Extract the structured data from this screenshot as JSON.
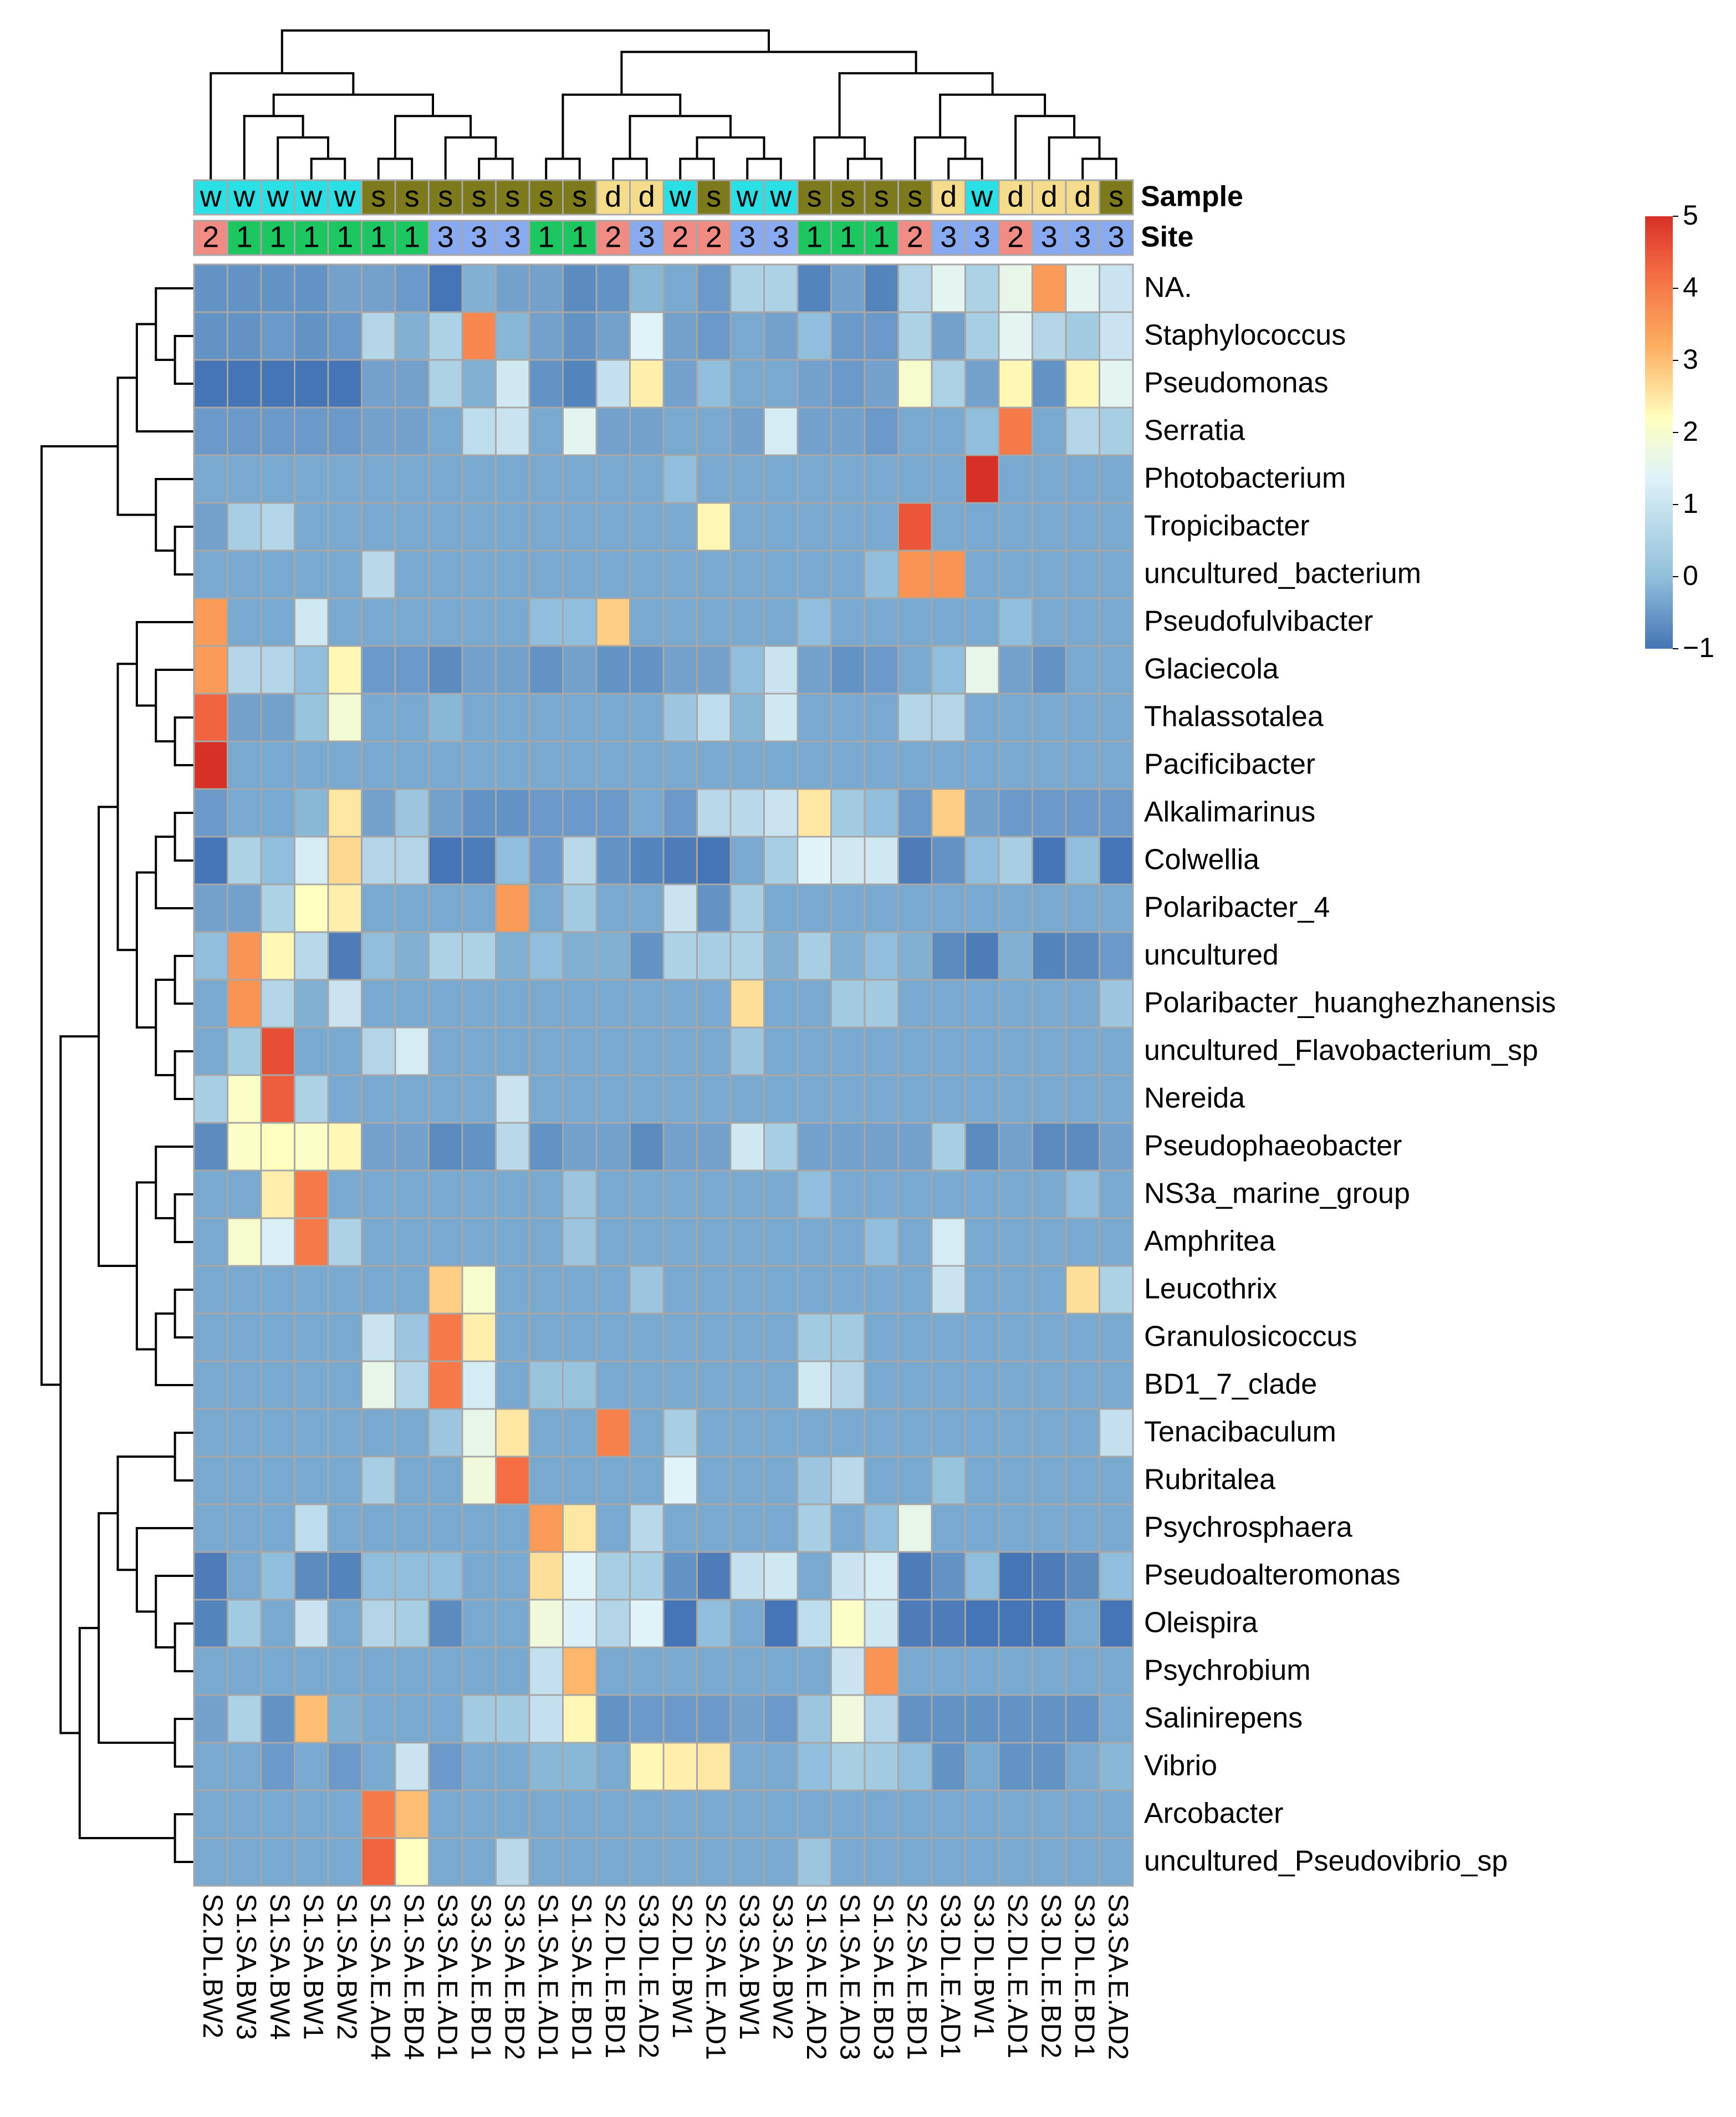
{
  "chart_data": {
    "type": "heatmap",
    "title": "",
    "columns": [
      "S2.DL.BW2",
      "S1.SA.BW3",
      "S1.SA.BW4",
      "S1.SA.BW1",
      "S1.SA.BW2",
      "S1.SA.E.AD4",
      "S1.SA.E.BD4",
      "S3.SA.E.AD1",
      "S3.SA.E.BD1",
      "S3.SA.E.BD2",
      "S1.SA.E.AD1",
      "S1.SA.E.BD1",
      "S2.DL.E.BD1",
      "S3.DL.E.AD2",
      "S2.DL.BW1",
      "S2.SA.E.AD1",
      "S3.SA.BW1",
      "S3.SA.BW2",
      "S1.SA.E.AD2",
      "S1.SA.E.AD3",
      "S1.SA.E.BD3",
      "S2.SA.E.BD1",
      "S3.DL.E.AD1",
      "S3.DL.BW1",
      "S2.DL.E.AD1",
      "S3.DL.E.BD2",
      "S3.DL.E.BD1",
      "S3.SA.E.AD2"
    ],
    "rows": [
      "NA.",
      "Staphylococcus",
      "Pseudomonas",
      "Serratia",
      "Photobacterium",
      "Tropicibacter",
      "uncultured_bacterium",
      "Pseudofulvibacter",
      "Glaciecola",
      "Thalassotalea",
      "Pacificibacter",
      "Alkalimarinus",
      "Colwellia",
      "Polaribacter_4",
      "uncultured",
      "Polaribacter_huanghezhanensis",
      "uncultured_Flavobacterium_sp",
      "Nereida",
      "Pseudophaeobacter",
      "NS3a_marine_group",
      "Amphritea",
      "Leucothrix",
      "Granulosicoccus",
      "BD1_7_clade",
      "Tenacibaculum",
      "Rubritalea",
      "Psychrosphaera",
      "Pseudoalteromonas",
      "Oleispira",
      "Psychrobium",
      "Salinirepens",
      "Vibrio",
      "Arcobacter",
      "uncultured_Pseudovibrio_sp"
    ],
    "annotations": {
      "sample": {
        "label": "Sample",
        "values": [
          "w",
          "w",
          "w",
          "w",
          "w",
          "s",
          "s",
          "s",
          "s",
          "s",
          "s",
          "s",
          "d",
          "d",
          "w",
          "s",
          "w",
          "w",
          "s",
          "s",
          "s",
          "s",
          "d",
          "w",
          "d",
          "d",
          "d",
          "s"
        ],
        "colors": {
          "w": "#2ae0e4",
          "s": "#7c7a1c",
          "d": "#f4dc8c"
        }
      },
      "site": {
        "label": "Site",
        "values": [
          "2",
          "1",
          "1",
          "1",
          "1",
          "1",
          "1",
          "3",
          "3",
          "3",
          "1",
          "1",
          "2",
          "3",
          "2",
          "2",
          "3",
          "3",
          "1",
          "1",
          "1",
          "2",
          "3",
          "3",
          "2",
          "3",
          "3",
          "3"
        ],
        "colors": {
          "1": "#1dc65e",
          "2": "#f08c84",
          "3": "#88aaee"
        }
      }
    },
    "values": [
      [
        -0.6,
        -0.6,
        -0.6,
        -0.6,
        -0.4,
        -0.4,
        -0.5,
        -1.0,
        -0.2,
        -0.4,
        -0.4,
        -0.7,
        -0.6,
        -0.1,
        -0.3,
        -0.5,
        0.5,
        0.5,
        -0.8,
        -0.4,
        -0.8,
        0.6,
        1.5,
        0.5,
        1.6,
        3.5,
        1.5,
        1.0
      ],
      [
        -0.6,
        -0.6,
        -0.5,
        -0.6,
        -0.5,
        0.6,
        -0.2,
        0.5,
        3.8,
        -0.1,
        -0.4,
        -0.6,
        -0.4,
        1.4,
        -0.4,
        -0.5,
        -0.3,
        -0.4,
        0.0,
        -0.5,
        -0.5,
        0.5,
        -0.4,
        0.4,
        1.5,
        0.6,
        0.3,
        1.0
      ],
      [
        -1.0,
        -1.0,
        -1.0,
        -1.1,
        -1.1,
        -0.4,
        -0.4,
        0.5,
        -0.2,
        1.1,
        -0.6,
        -0.8,
        0.9,
        2.4,
        -0.4,
        0.0,
        -0.3,
        -0.3,
        -0.4,
        -0.5,
        -0.4,
        2.0,
        0.5,
        -0.4,
        2.3,
        -0.6,
        2.3,
        1.5
      ],
      [
        -0.5,
        -0.5,
        -0.5,
        -0.5,
        -0.5,
        -0.4,
        -0.4,
        -0.3,
        0.8,
        1.0,
        -0.3,
        1.5,
        -0.4,
        -0.4,
        -0.3,
        -0.3,
        -0.4,
        1.2,
        -0.4,
        -0.4,
        -0.5,
        -0.3,
        -0.3,
        0.0,
        4.0,
        -0.3,
        0.6,
        0.4
      ],
      [
        -0.3,
        -0.3,
        -0.3,
        -0.3,
        -0.3,
        -0.3,
        -0.3,
        -0.3,
        -0.3,
        -0.3,
        -0.3,
        -0.3,
        -0.3,
        -0.3,
        0.0,
        -0.3,
        -0.3,
        -0.3,
        -0.3,
        -0.3,
        -0.3,
        -0.3,
        -0.3,
        5.0,
        -0.3,
        -0.3,
        -0.3,
        -0.3
      ],
      [
        -0.4,
        0.4,
        0.6,
        -0.3,
        -0.3,
        -0.3,
        -0.3,
        -0.3,
        -0.3,
        -0.3,
        -0.3,
        -0.3,
        -0.3,
        -0.3,
        -0.3,
        2.3,
        -0.3,
        -0.3,
        -0.3,
        -0.3,
        -0.3,
        4.5,
        -0.3,
        -0.3,
        -0.3,
        -0.3,
        -0.3,
        -0.3
      ],
      [
        -0.3,
        -0.3,
        -0.3,
        -0.3,
        -0.3,
        0.7,
        -0.3,
        -0.3,
        -0.3,
        -0.3,
        -0.3,
        -0.3,
        -0.3,
        -0.3,
        -0.3,
        -0.3,
        -0.3,
        -0.3,
        -0.3,
        -0.3,
        0.0,
        3.6,
        3.6,
        -0.3,
        -0.3,
        -0.3,
        -0.3,
        -0.3
      ],
      [
        3.5,
        -0.3,
        -0.3,
        1.1,
        -0.3,
        -0.3,
        -0.3,
        -0.3,
        -0.3,
        -0.3,
        0.0,
        0.0,
        2.8,
        -0.3,
        -0.3,
        -0.3,
        -0.3,
        -0.3,
        0.0,
        -0.3,
        -0.3,
        -0.3,
        -0.3,
        -0.3,
        0.0,
        -0.3,
        -0.3,
        -0.3
      ],
      [
        3.5,
        0.6,
        0.6,
        0.0,
        2.3,
        -0.5,
        -0.5,
        -0.7,
        -0.4,
        -0.4,
        -0.6,
        -0.4,
        -0.6,
        -0.6,
        -0.4,
        -0.4,
        0.0,
        1.0,
        -0.4,
        -0.6,
        -0.5,
        -0.3,
        0.0,
        1.6,
        -0.4,
        -0.6,
        -0.3,
        -0.3
      ],
      [
        4.3,
        -0.4,
        -0.4,
        0.1,
        1.9,
        -0.3,
        -0.3,
        -0.1,
        -0.3,
        -0.3,
        -0.3,
        -0.3,
        -0.3,
        -0.3,
        0.2,
        0.8,
        -0.1,
        1.1,
        -0.3,
        -0.3,
        -0.3,
        0.6,
        0.6,
        -0.3,
        -0.3,
        -0.3,
        -0.3,
        -0.3
      ],
      [
        5.0,
        -0.3,
        -0.3,
        -0.3,
        -0.3,
        -0.3,
        -0.3,
        -0.3,
        -0.3,
        -0.3,
        -0.3,
        -0.3,
        -0.3,
        -0.3,
        -0.3,
        -0.3,
        -0.3,
        -0.3,
        -0.3,
        -0.3,
        -0.3,
        -0.3,
        -0.3,
        -0.3,
        -0.3,
        -0.3,
        -0.3,
        -0.3
      ],
      [
        -0.5,
        -0.3,
        -0.3,
        -0.1,
        2.5,
        -0.4,
        0.2,
        -0.4,
        -0.6,
        -0.6,
        -0.5,
        -0.5,
        -0.5,
        -0.3,
        -0.5,
        0.7,
        0.7,
        1.0,
        2.5,
        0.3,
        0.0,
        -0.5,
        2.8,
        -0.4,
        -0.5,
        -0.5,
        -0.5,
        -0.5
      ],
      [
        -1.0,
        0.5,
        0.0,
        1.2,
        2.7,
        0.6,
        0.6,
        -1.0,
        -0.9,
        0.0,
        -0.5,
        0.7,
        -0.6,
        -0.8,
        -0.9,
        -1.1,
        -0.3,
        0.4,
        1.4,
        1.1,
        1.1,
        -0.9,
        -0.6,
        0.0,
        0.4,
        -1.1,
        0.0,
        -1.1
      ],
      [
        -0.4,
        -0.4,
        0.5,
        2.2,
        2.4,
        -0.3,
        -0.3,
        -0.3,
        -0.3,
        3.5,
        -0.3,
        0.3,
        -0.3,
        -0.3,
        1.0,
        -0.6,
        0.4,
        -0.3,
        -0.3,
        -0.3,
        -0.3,
        -0.3,
        -0.3,
        -0.3,
        -0.3,
        -0.3,
        -0.3,
        -0.3
      ],
      [
        0.0,
        3.6,
        2.3,
        0.7,
        -0.9,
        0.0,
        -0.2,
        0.5,
        0.5,
        -0.2,
        0.0,
        -0.2,
        -0.2,
        -0.6,
        0.5,
        0.4,
        0.5,
        -0.2,
        0.4,
        -0.2,
        0.0,
        -0.2,
        -0.7,
        -0.9,
        -0.2,
        -0.8,
        -0.7,
        -0.5
      ],
      [
        -0.3,
        3.6,
        0.6,
        -0.2,
        1.0,
        -0.3,
        -0.3,
        -0.3,
        -0.3,
        -0.3,
        -0.3,
        -0.3,
        -0.3,
        -0.3,
        -0.3,
        -0.3,
        2.6,
        -0.3,
        -0.3,
        0.3,
        0.3,
        -0.3,
        -0.3,
        -0.3,
        -0.3,
        -0.3,
        -0.3,
        0.2
      ],
      [
        -0.3,
        0.3,
        4.6,
        -0.3,
        -0.3,
        0.6,
        1.2,
        -0.3,
        -0.3,
        -0.3,
        -0.3,
        -0.3,
        -0.3,
        -0.3,
        -0.3,
        -0.3,
        0.2,
        -0.3,
        -0.3,
        -0.3,
        -0.3,
        -0.3,
        -0.3,
        -0.3,
        -0.3,
        -0.3,
        -0.3,
        -0.3
      ],
      [
        0.4,
        2.1,
        4.4,
        0.5,
        -0.3,
        -0.3,
        -0.3,
        -0.3,
        -0.3,
        1.0,
        -0.3,
        -0.3,
        -0.3,
        -0.3,
        -0.3,
        -0.3,
        -0.3,
        -0.3,
        -0.3,
        -0.3,
        -0.3,
        -0.3,
        -0.3,
        -0.3,
        -0.3,
        -0.3,
        -0.3,
        -0.3
      ],
      [
        -0.7,
        2.1,
        2.2,
        2.1,
        2.3,
        -0.4,
        -0.4,
        -0.7,
        -0.6,
        0.7,
        -0.6,
        -0.4,
        -0.4,
        -0.7,
        -0.4,
        -0.4,
        1.1,
        0.4,
        -0.4,
        -0.4,
        -0.4,
        -0.4,
        0.4,
        -0.7,
        -0.4,
        -0.7,
        -0.7,
        -0.4
      ],
      [
        -0.3,
        -0.3,
        2.4,
        4.0,
        -0.3,
        -0.3,
        -0.3,
        -0.3,
        -0.3,
        -0.3,
        -0.3,
        0.2,
        -0.3,
        -0.3,
        -0.3,
        -0.3,
        -0.3,
        -0.3,
        0.0,
        -0.3,
        -0.3,
        -0.3,
        -0.3,
        -0.3,
        -0.3,
        -0.3,
        0.0,
        -0.3
      ],
      [
        -0.3,
        2.0,
        1.3,
        4.0,
        0.5,
        -0.3,
        -0.3,
        -0.3,
        -0.3,
        -0.3,
        -0.3,
        0.2,
        -0.3,
        -0.3,
        -0.3,
        -0.3,
        -0.3,
        -0.3,
        -0.3,
        -0.3,
        0.0,
        -0.3,
        1.2,
        -0.3,
        -0.3,
        -0.3,
        -0.3,
        -0.3
      ],
      [
        -0.3,
        -0.3,
        -0.3,
        -0.3,
        -0.3,
        -0.3,
        -0.3,
        2.8,
        2.0,
        -0.3,
        -0.3,
        -0.3,
        -0.3,
        0.2,
        -0.3,
        -0.3,
        -0.3,
        -0.3,
        -0.3,
        -0.3,
        -0.3,
        -0.3,
        1.0,
        -0.3,
        -0.3,
        -0.3,
        2.6,
        0.5
      ],
      [
        -0.3,
        -0.3,
        -0.3,
        -0.3,
        -0.3,
        1.0,
        0.2,
        4.0,
        2.4,
        -0.3,
        -0.3,
        -0.3,
        -0.3,
        -0.3,
        -0.3,
        -0.3,
        -0.3,
        -0.3,
        0.3,
        0.3,
        -0.3,
        -0.3,
        -0.3,
        -0.3,
        -0.3,
        -0.3,
        -0.3,
        -0.3
      ],
      [
        -0.3,
        -0.3,
        -0.3,
        -0.3,
        -0.3,
        1.6,
        0.6,
        4.0,
        1.2,
        -0.3,
        0.1,
        0.1,
        -0.3,
        -0.3,
        -0.3,
        -0.3,
        -0.3,
        -0.3,
        1.1,
        0.6,
        -0.3,
        -0.3,
        -0.3,
        -0.3,
        -0.3,
        -0.3,
        -0.3,
        -0.3
      ],
      [
        -0.3,
        -0.3,
        -0.3,
        -0.3,
        -0.3,
        -0.3,
        -0.3,
        0.2,
        1.6,
        2.5,
        -0.3,
        -0.3,
        3.9,
        -0.3,
        0.4,
        -0.3,
        -0.3,
        -0.3,
        -0.3,
        -0.3,
        -0.3,
        -0.3,
        -0.3,
        -0.3,
        -0.3,
        -0.3,
        -0.3,
        0.9
      ],
      [
        -0.3,
        -0.3,
        -0.3,
        -0.3,
        -0.3,
        0.4,
        -0.3,
        -0.3,
        1.8,
        4.2,
        -0.3,
        -0.3,
        -0.3,
        -0.3,
        1.4,
        -0.3,
        -0.3,
        -0.3,
        0.2,
        0.7,
        -0.3,
        -0.3,
        0.1,
        -0.3,
        -0.3,
        -0.3,
        -0.3,
        -0.3
      ],
      [
        -0.3,
        -0.3,
        -0.3,
        0.8,
        -0.3,
        -0.3,
        -0.3,
        -0.3,
        -0.3,
        -0.3,
        3.5,
        2.5,
        -0.3,
        0.7,
        -0.3,
        -0.3,
        -0.3,
        -0.3,
        0.4,
        -0.3,
        0.0,
        1.6,
        -0.3,
        -0.3,
        -0.3,
        -0.3,
        -0.3,
        -0.3
      ],
      [
        -0.9,
        -0.3,
        0.0,
        -0.7,
        -0.8,
        0.0,
        0.0,
        0.0,
        -0.3,
        -0.3,
        2.6,
        1.4,
        0.4,
        0.4,
        -0.6,
        -0.9,
        0.9,
        1.1,
        -0.3,
        1.0,
        1.2,
        -0.9,
        -0.6,
        0.0,
        -1.0,
        -0.9,
        -0.7,
        0.0
      ],
      [
        -0.8,
        0.3,
        -0.3,
        1.0,
        -0.3,
        0.6,
        0.4,
        -0.7,
        -0.3,
        -0.3,
        1.8,
        1.3,
        0.6,
        1.4,
        -1.0,
        0.0,
        -0.3,
        -1.0,
        0.8,
        2.1,
        1.1,
        -0.9,
        -0.9,
        -1.1,
        -1.0,
        -1.0,
        -0.3,
        -1.0
      ],
      [
        -0.3,
        -0.3,
        -0.3,
        -0.3,
        -0.3,
        -0.3,
        -0.3,
        -0.3,
        -0.3,
        -0.3,
        0.9,
        3.1,
        -0.3,
        -0.3,
        -0.3,
        -0.3,
        -0.3,
        -0.3,
        -0.3,
        1.0,
        3.6,
        -0.3,
        -0.3,
        -0.3,
        -0.3,
        -0.3,
        -0.3,
        -0.3
      ],
      [
        -0.4,
        0.5,
        -0.6,
        3.0,
        -0.2,
        -0.3,
        -0.3,
        -0.3,
        0.3,
        0.3,
        0.9,
        2.3,
        -0.6,
        -0.5,
        -0.5,
        -0.5,
        -0.4,
        -0.5,
        0.2,
        1.8,
        0.6,
        -0.6,
        -0.6,
        -0.6,
        -0.6,
        -0.6,
        -0.6,
        -0.3
      ],
      [
        -0.3,
        -0.3,
        -0.5,
        -0.3,
        -0.5,
        -0.3,
        1.0,
        -0.5,
        -0.3,
        -0.3,
        -0.1,
        -0.1,
        -0.3,
        2.3,
        2.4,
        2.5,
        -0.3,
        -0.3,
        0.0,
        0.4,
        0.3,
        0.0,
        -0.6,
        -0.3,
        -0.6,
        -0.6,
        -0.3,
        -0.1
      ],
      [
        -0.3,
        -0.3,
        -0.3,
        -0.3,
        -0.3,
        4.0,
        3.0,
        -0.3,
        -0.3,
        -0.3,
        -0.3,
        -0.3,
        -0.3,
        -0.3,
        -0.3,
        -0.3,
        -0.3,
        -0.3,
        -0.3,
        -0.3,
        -0.3,
        -0.3,
        -0.3,
        -0.3,
        -0.3,
        -0.3,
        -0.3,
        -0.3
      ],
      [
        -0.3,
        -0.3,
        -0.3,
        -0.3,
        -0.3,
        4.3,
        2.2,
        -0.3,
        -0.3,
        0.7,
        -0.3,
        -0.3,
        -0.3,
        -0.3,
        -0.3,
        -0.3,
        -0.3,
        -0.3,
        0.2,
        -0.3,
        -0.3,
        -0.3,
        -0.3,
        -0.3,
        -0.3,
        -0.3,
        -0.3,
        -0.3
      ]
    ],
    "color_scale": {
      "range": [
        -1,
        5
      ],
      "ticks": [
        "5",
        "4",
        "3",
        "2",
        "1",
        "0",
        "−1"
      ],
      "tick_values": [
        5,
        4,
        3,
        2,
        1,
        0,
        -1
      ],
      "stops": [
        {
          "v": -1,
          "c": "#4575b4"
        },
        {
          "v": 0,
          "c": "#91bfdb"
        },
        {
          "v": 1.4,
          "c": "#e0f3f8"
        },
        {
          "v": 2.2,
          "c": "#ffffbf"
        },
        {
          "v": 3.2,
          "c": "#fdae61"
        },
        {
          "v": 4.2,
          "c": "#f46d43"
        },
        {
          "v": 5,
          "c": "#d73027"
        }
      ]
    },
    "dendrograms": {
      "columns": "top",
      "rows": "left"
    }
  }
}
